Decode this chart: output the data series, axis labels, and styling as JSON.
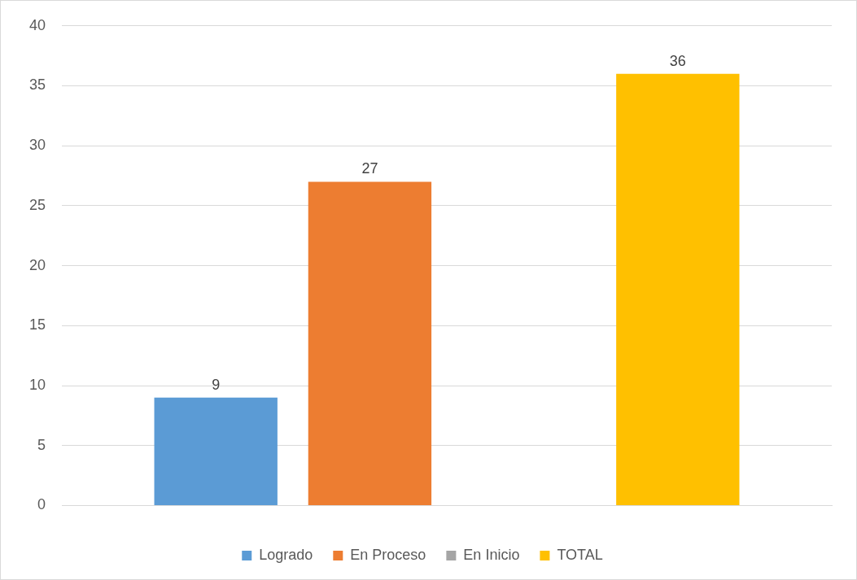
{
  "chart_data": {
    "type": "bar",
    "categories": [
      null
    ],
    "series": [
      {
        "name": "Logrado",
        "color": "#5b9bd5",
        "values": [
          9
        ]
      },
      {
        "name": "En Proceso",
        "color": "#ed7d31",
        "values": [
          27
        ]
      },
      {
        "name": "En Inicio",
        "color": "#a5a5a5",
        "values": [
          null
        ]
      },
      {
        "name": "TOTAL",
        "color": "#ffc000",
        "values": [
          36
        ]
      }
    ],
    "ylim": [
      0,
      40
    ],
    "yticks": [
      0,
      5,
      10,
      15,
      20,
      25,
      30,
      35,
      40
    ],
    "grid": "y",
    "legend": "bottom",
    "data_labels": true
  }
}
